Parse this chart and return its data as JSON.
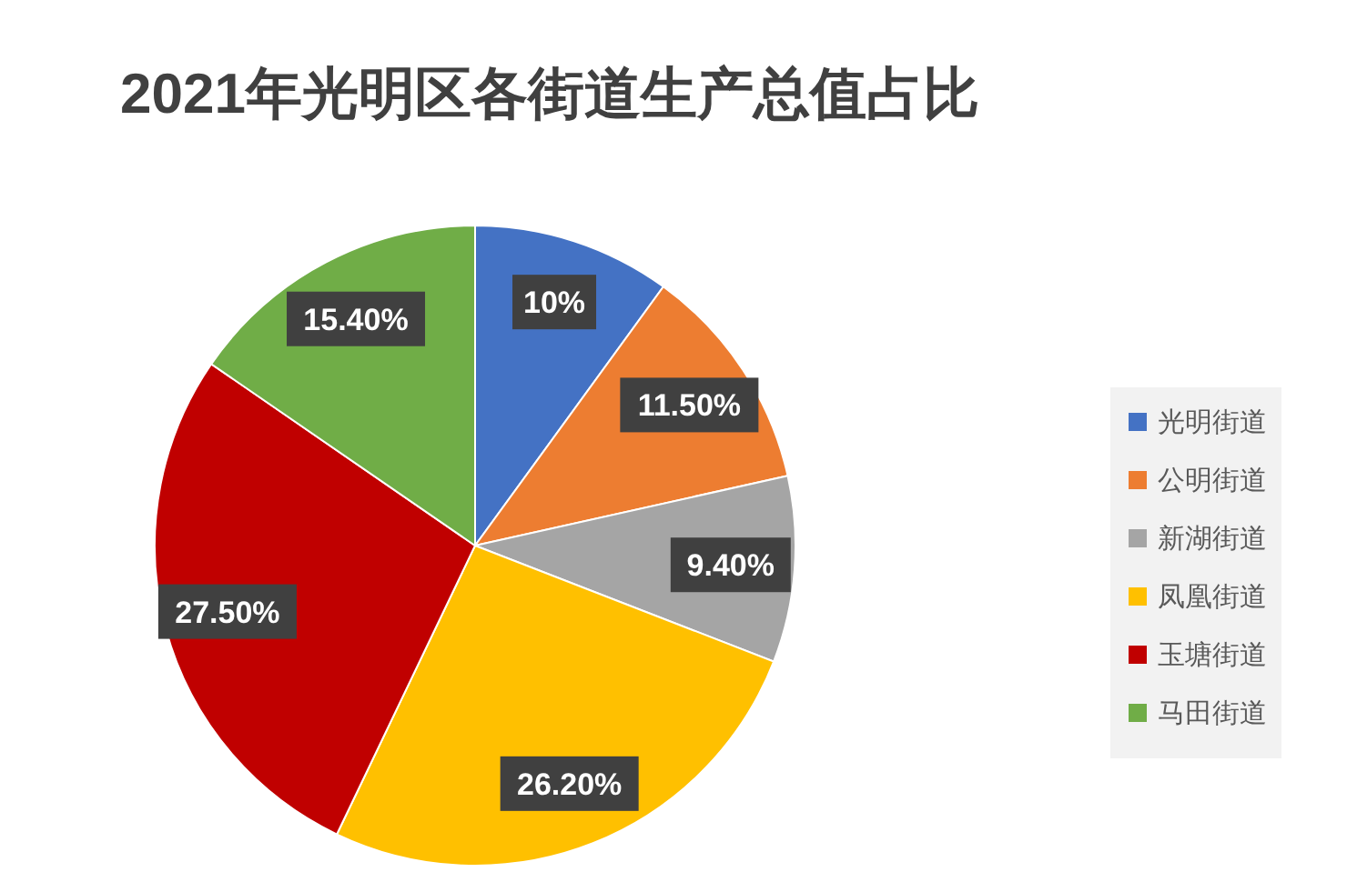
{
  "chart_data": {
    "type": "pie",
    "title": "2021年光明区各街道生产总值占比",
    "categories": [
      "光明街道",
      "公明街道",
      "新湖街道",
      "凤凰街道",
      "玉塘街道",
      "马田街道"
    ],
    "values": [
      10,
      11.5,
      9.4,
      26.2,
      27.5,
      15.4
    ],
    "value_labels": [
      "10%",
      "11.50%",
      "9.40%",
      "26.20%",
      "27.50%",
      "15.40%"
    ],
    "colors": [
      "#4472c4",
      "#ed7d31",
      "#a5a5a5",
      "#ffc000",
      "#c00000",
      "#70ad47"
    ],
    "legend": "right"
  }
}
